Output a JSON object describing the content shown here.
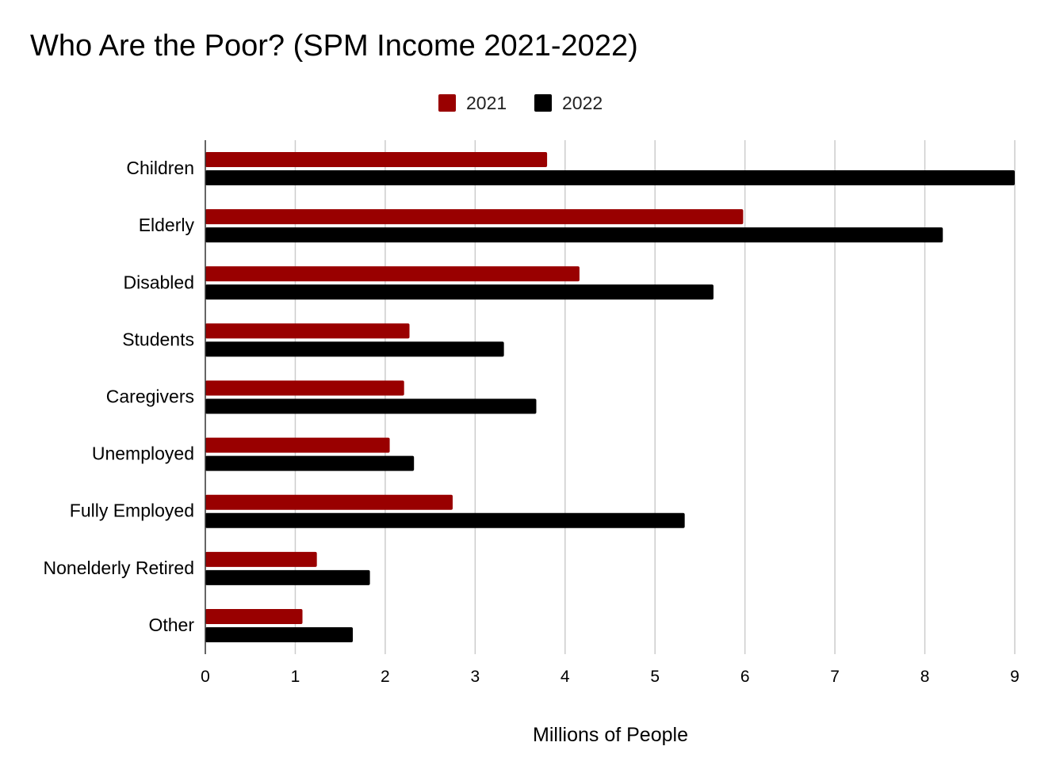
{
  "chart_data": {
    "type": "bar",
    "orientation": "horizontal",
    "title": "Who Are the Poor? (SPM Income 2021-2022)",
    "xlabel": "Millions of People",
    "ylabel": "",
    "categories": [
      "Children",
      "Elderly",
      "Disabled",
      "Students",
      "Caregivers",
      "Unemployed",
      "Fully Employed",
      "Nonelderly Retired",
      "Other"
    ],
    "series": [
      {
        "name": "2021",
        "color": "#990000",
        "values": [
          3.8,
          5.98,
          4.16,
          2.27,
          2.21,
          2.05,
          2.75,
          1.24,
          1.08
        ]
      },
      {
        "name": "2022",
        "color": "#000000",
        "values": [
          9.0,
          8.2,
          5.65,
          3.32,
          3.68,
          2.32,
          5.33,
          1.83,
          1.64
        ]
      }
    ],
    "xlim": [
      0,
      9
    ],
    "xticks": [
      "0",
      "1",
      "2",
      "3",
      "4",
      "5",
      "6",
      "7",
      "8",
      "9"
    ],
    "grid": true,
    "legend_position": "top"
  }
}
